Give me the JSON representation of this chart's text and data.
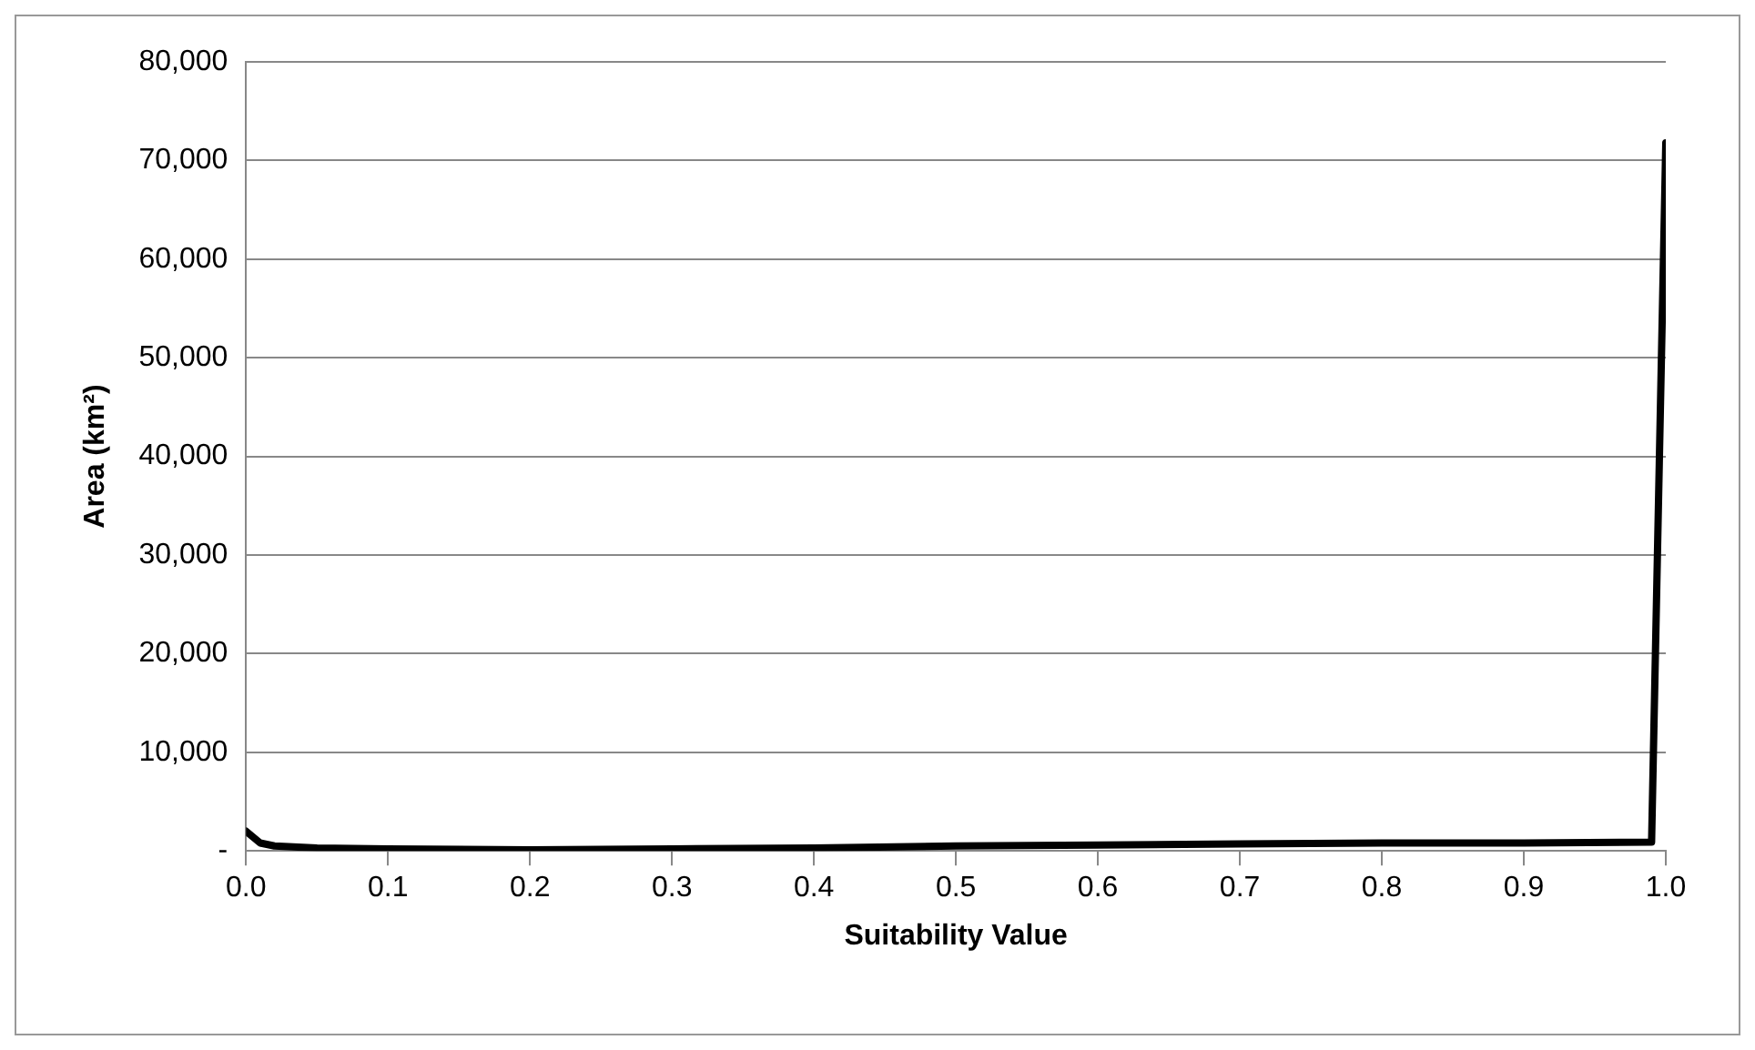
{
  "chart_data": {
    "type": "line",
    "xlabel": "Suitability Value",
    "ylabel": "Area (km²)",
    "x": [
      0,
      0.01,
      0.02,
      0.05,
      0.1,
      0.2,
      0.3,
      0.4,
      0.5,
      0.6,
      0.7,
      0.8,
      0.9,
      0.99,
      1.0
    ],
    "series": [
      {
        "color": "#000000",
        "values": [
          2000,
          800,
          500,
          300,
          200,
          100,
          200,
          300,
          500,
          600,
          700,
          800,
          800,
          900,
          71800
        ]
      }
    ],
    "xlim": [
      0,
      1
    ],
    "xticks": [
      {
        "value": 0,
        "label": "0.0"
      },
      0.1,
      0.2,
      0.3,
      0.4,
      0.5,
      0.6,
      0.7,
      0.8,
      0.9,
      {
        "value": 1,
        "label": "1.0"
      }
    ],
    "ylim": [
      0,
      80000
    ],
    "yticks": [
      {
        "value": 0,
        "label": "-"
      },
      {
        "value": 10000,
        "label": "10,000"
      },
      {
        "value": 20000,
        "label": "20,000"
      },
      {
        "value": 30000,
        "label": "30,000"
      },
      {
        "value": 40000,
        "label": "40,000"
      },
      {
        "value": 50000,
        "label": "50,000"
      },
      {
        "value": 60000,
        "label": "60,000"
      },
      {
        "value": 70000,
        "label": "70,000"
      },
      {
        "value": 80000,
        "label": "80,000"
      }
    ],
    "grid": "y",
    "marker": "none",
    "line_style": "solid",
    "legend": false
  }
}
